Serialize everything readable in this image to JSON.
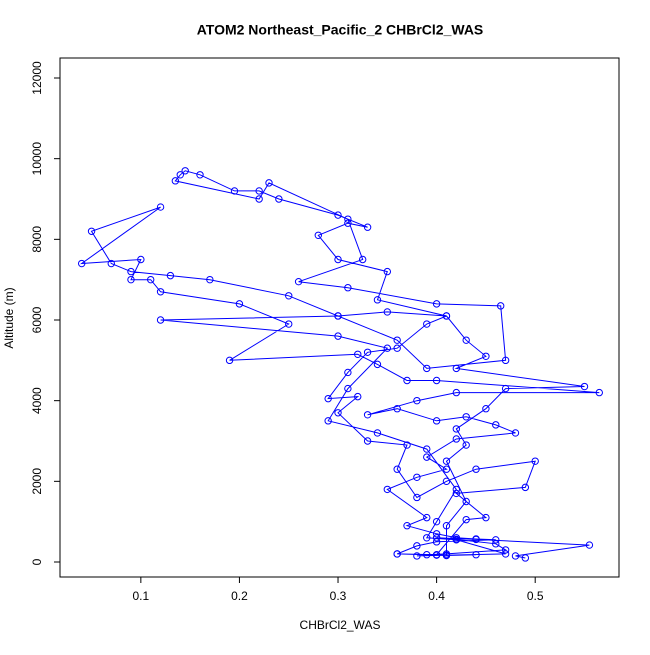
{
  "chart_data": {
    "type": "scatter-line",
    "title": "ATOM2 Northeast_Pacific_2 CHBrCl2_WAS",
    "xlabel": "CHBrCl2_WAS",
    "ylabel": "Altitude (m)",
    "color": "#0000ff",
    "xlim": [
      0.018,
      0.585
    ],
    "ylim": [
      -372,
      12496
    ],
    "xticks": [
      0.1,
      0.2,
      0.3,
      0.4,
      0.5
    ],
    "yticks": [
      0,
      2000,
      4000,
      6000,
      8000,
      10000,
      12000
    ],
    "x": [
      0.49,
      0.48,
      0.555,
      0.44,
      0.4,
      0.42,
      0.46,
      0.47,
      0.41,
      0.39,
      0.36,
      0.4,
      0.43,
      0.45,
      0.42,
      0.49,
      0.5,
      0.44,
      0.41,
      0.38,
      0.36,
      0.37,
      0.33,
      0.3,
      0.32,
      0.29,
      0.31,
      0.33,
      0.36,
      0.39,
      0.41,
      0.35,
      0.3,
      0.25,
      0.17,
      0.13,
      0.09,
      0.07,
      0.05,
      0.12,
      0.04,
      0.1,
      0.09,
      0.11,
      0.12,
      0.2,
      0.25,
      0.19,
      0.32,
      0.34,
      0.37,
      0.4,
      0.565,
      0.42,
      0.38,
      0.33,
      0.36,
      0.4,
      0.43,
      0.46,
      0.48,
      0.42,
      0.39,
      0.41,
      0.38,
      0.35,
      0.39,
      0.37,
      0.4,
      0.42,
      0.44,
      0.46,
      0.4,
      0.38,
      0.36,
      0.41,
      0.44,
      0.41,
      0.41,
      0.43,
      0.41,
      0.43,
      0.42,
      0.45,
      0.47,
      0.55,
      0.42,
      0.45,
      0.43,
      0.41,
      0.34,
      0.35,
      0.3,
      0.28,
      0.31,
      0.33,
      0.3,
      0.24,
      0.22,
      0.195,
      0.16,
      0.145,
      0.14,
      0.135,
      0.22,
      0.23,
      0.31,
      0.325,
      0.26,
      0.31,
      0.4,
      0.465,
      0.47,
      0.39,
      0.36,
      0.3,
      0.12,
      0.3,
      0.35,
      0.31,
      0.29,
      0.34,
      0.39,
      0.42,
      0.4,
      0.39,
      0.42,
      0.47,
      0.38,
      0.4
    ],
    "values": [
      100,
      150,
      420,
      560,
      600,
      560,
      450,
      300,
      200,
      180,
      200,
      180,
      1050,
      1100,
      1700,
      1850,
      2500,
      2300,
      2000,
      1600,
      2300,
      2900,
      3000,
      3700,
      4100,
      4050,
      4700,
      5200,
      5300,
      5900,
      6100,
      6200,
      6100,
      6600,
      7000,
      7100,
      7200,
      7400,
      8200,
      8800,
      7400,
      7500,
      7000,
      7000,
      6700,
      6400,
      5900,
      5000,
      5150,
      4900,
      4500,
      4500,
      4200,
      4200,
      4000,
      3650,
      3800,
      3500,
      3600,
      3400,
      3200,
      3050,
      2600,
      2300,
      2100,
      1800,
      1100,
      900,
      700,
      600,
      570,
      550,
      500,
      400,
      200,
      170,
      180,
      160,
      900,
      1500,
      2500,
      2900,
      3300,
      3800,
      4300,
      4350,
      4800,
      5100,
      5500,
      6100,
      6500,
      7200,
      7500,
      8100,
      8400,
      8300,
      8600,
      9000,
      9200,
      9200,
      9600,
      9700,
      9600,
      9450,
      9000,
      9400,
      8500,
      7500,
      6950,
      6800,
      6400,
      6350,
      5000,
      4800,
      5500,
      6100,
      6000,
      5600,
      5300,
      4300,
      3500,
      3200,
      2800,
      1800,
      1000,
      600,
      550,
      200,
      150,
      170
    ]
  }
}
